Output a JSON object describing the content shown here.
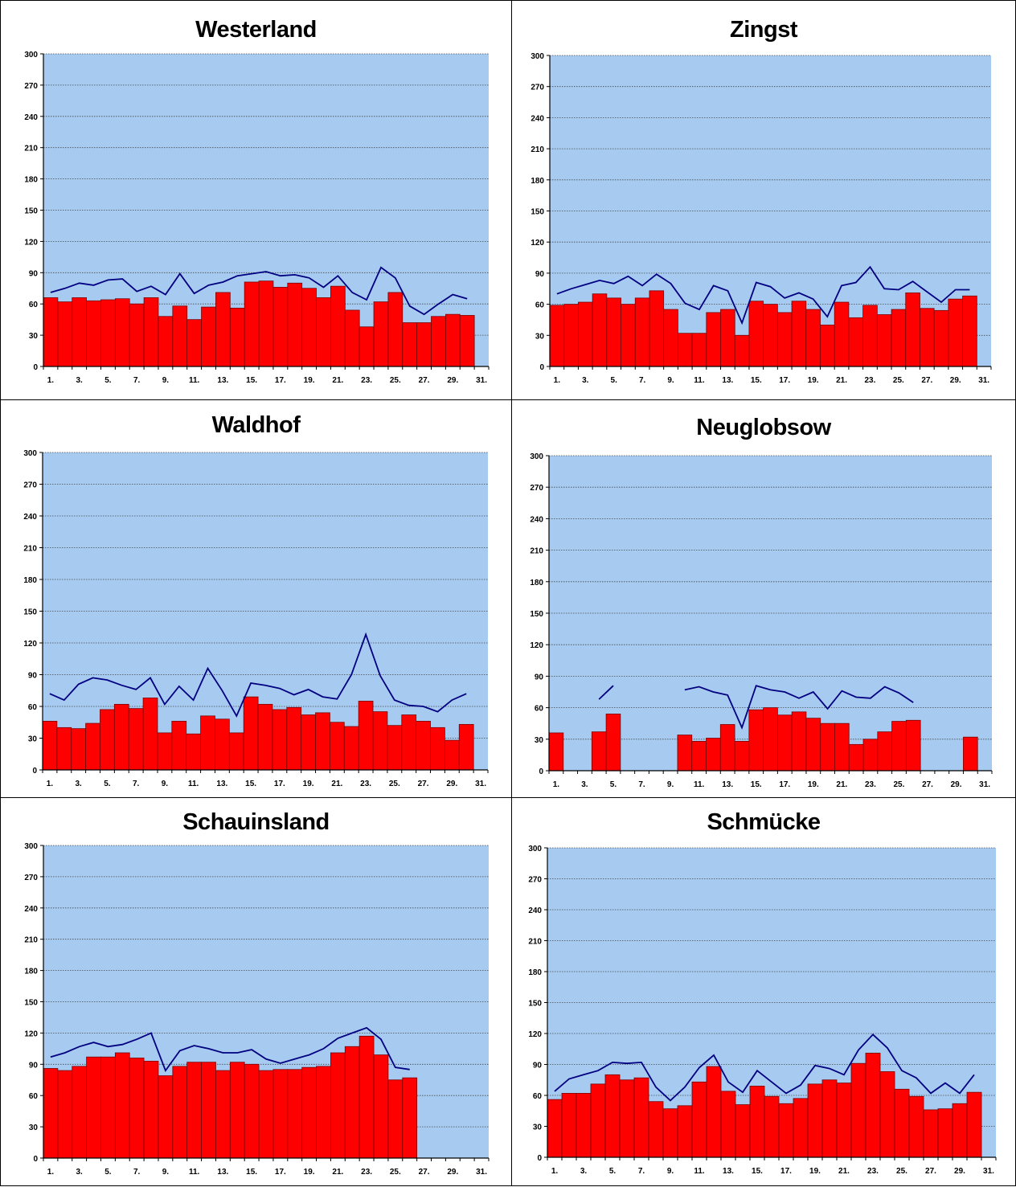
{
  "chart_data": [
    {
      "type": "bar",
      "title": "Westerland",
      "ylim": [
        0,
        300
      ],
      "yticks": [
        0,
        30,
        60,
        90,
        120,
        150,
        180,
        210,
        240,
        270,
        300
      ],
      "xtick_labels": [
        "1.",
        "3.",
        "5.",
        "7.",
        "9.",
        "11.",
        "13.",
        "15.",
        "17.",
        "19.",
        "21.",
        "23.",
        "25.",
        "27.",
        "29.",
        "31."
      ],
      "grid": true,
      "bars": [
        66,
        62,
        66,
        63,
        64,
        65,
        60,
        66,
        48,
        58,
        45,
        57,
        71,
        56,
        81,
        82,
        76,
        80,
        75,
        66,
        77,
        54,
        38,
        62,
        71,
        42,
        42,
        48,
        50,
        49,
        null
      ],
      "line": [
        71,
        75,
        80,
        78,
        83,
        84,
        72,
        77,
        69,
        89,
        70,
        78,
        81,
        87,
        89,
        91,
        87,
        88,
        85,
        76,
        87,
        71,
        64,
        95,
        85,
        58,
        50,
        60,
        69,
        65,
        null
      ]
    },
    {
      "type": "bar",
      "title": "Zingst",
      "ylim": [
        0,
        300
      ],
      "yticks": [
        0,
        30,
        60,
        90,
        120,
        150,
        180,
        210,
        240,
        270,
        300
      ],
      "xtick_labels": [
        "1.",
        "3.",
        "5.",
        "7.",
        "9.",
        "11.",
        "13.",
        "15.",
        "17.",
        "19.",
        "21.",
        "23.",
        "25.",
        "27.",
        "29.",
        "31."
      ],
      "grid": true,
      "bars": [
        59,
        60,
        62,
        70,
        66,
        60,
        66,
        73,
        55,
        32,
        32,
        52,
        55,
        30,
        63,
        60,
        52,
        63,
        55,
        40,
        62,
        47,
        59,
        50,
        55,
        71,
        56,
        54,
        65,
        68,
        null
      ],
      "line": [
        70,
        75,
        79,
        83,
        80,
        87,
        78,
        89,
        80,
        61,
        55,
        78,
        73,
        42,
        81,
        77,
        66,
        71,
        65,
        48,
        78,
        81,
        96,
        75,
        74,
        82,
        72,
        62,
        74,
        74,
        null
      ]
    },
    {
      "type": "bar",
      "title": "Waldhof",
      "ylim": [
        0,
        300
      ],
      "yticks": [
        0,
        30,
        60,
        90,
        120,
        150,
        180,
        210,
        240,
        270,
        300
      ],
      "xtick_labels": [
        "1.",
        "3.",
        "5.",
        "7.",
        "9.",
        "11.",
        "13.",
        "15.",
        "17.",
        "19.",
        "21.",
        "23.",
        "25.",
        "27.",
        "29.",
        "31."
      ],
      "grid": true,
      "bars": [
        46,
        40,
        39,
        44,
        57,
        62,
        58,
        68,
        35,
        46,
        34,
        51,
        48,
        35,
        69,
        62,
        57,
        59,
        52,
        54,
        45,
        41,
        65,
        55,
        42,
        52,
        46,
        40,
        28,
        43,
        null
      ],
      "line": [
        72,
        66,
        81,
        87,
        85,
        80,
        76,
        87,
        62,
        79,
        66,
        96,
        75,
        51,
        82,
        80,
        77,
        71,
        76,
        69,
        67,
        90,
        128,
        89,
        66,
        61,
        60,
        55,
        66,
        72,
        null
      ]
    },
    {
      "type": "bar",
      "title": "Neuglobsow",
      "ylim": [
        0,
        300
      ],
      "yticks": [
        0,
        30,
        60,
        90,
        120,
        150,
        180,
        210,
        240,
        270,
        300
      ],
      "xtick_labels": [
        "1.",
        "3.",
        "5.",
        "7.",
        "9.",
        "11.",
        "13.",
        "15.",
        "17.",
        "19.",
        "21.",
        "23.",
        "25.",
        "27.",
        "29.",
        "31."
      ],
      "grid": true,
      "bars": [
        36,
        null,
        null,
        37,
        54,
        null,
        null,
        null,
        null,
        34,
        28,
        31,
        44,
        28,
        58,
        60,
        53,
        56,
        50,
        45,
        45,
        25,
        30,
        37,
        47,
        48,
        null,
        null,
        null,
        32,
        null
      ],
      "line": [
        null,
        null,
        null,
        68,
        81,
        null,
        null,
        null,
        null,
        77,
        80,
        75,
        72,
        41,
        81,
        77,
        75,
        69,
        75,
        59,
        76,
        70,
        69,
        80,
        74,
        65,
        null,
        null,
        null,
        null,
        null
      ]
    },
    {
      "type": "bar",
      "title": "Schauinsland",
      "ylim": [
        0,
        300
      ],
      "yticks": [
        0,
        30,
        60,
        90,
        120,
        150,
        180,
        210,
        240,
        270,
        300
      ],
      "xtick_labels": [
        "1.",
        "3.",
        "5.",
        "7.",
        "9.",
        "11.",
        "13.",
        "15.",
        "17.",
        "19.",
        "21.",
        "23.",
        "25.",
        "27.",
        "29.",
        "31."
      ],
      "grid": true,
      "bars": [
        86,
        84,
        88,
        97,
        97,
        101,
        96,
        93,
        79,
        88,
        92,
        92,
        84,
        92,
        90,
        84,
        85,
        85,
        87,
        88,
        101,
        107,
        117,
        99,
        75,
        77,
        null,
        null,
        null,
        null,
        null
      ],
      "line": [
        97,
        101,
        107,
        111,
        107,
        109,
        114,
        120,
        84,
        103,
        108,
        105,
        101,
        101,
        104,
        95,
        91,
        95,
        99,
        105,
        115,
        120,
        125,
        114,
        87,
        85,
        null,
        null,
        null,
        null,
        null
      ]
    },
    {
      "type": "bar",
      "title": "Schmücke",
      "ylim": [
        0,
        300
      ],
      "yticks": [
        0,
        30,
        60,
        90,
        120,
        150,
        180,
        210,
        240,
        270,
        300
      ],
      "xtick_labels": [
        "1.",
        "3.",
        "5.",
        "7.",
        "9.",
        "11.",
        "13.",
        "15.",
        "17.",
        "19.",
        "21.",
        "23.",
        "25.",
        "27.",
        "29.",
        "31."
      ],
      "grid": true,
      "bars": [
        56,
        62,
        62,
        71,
        80,
        75,
        77,
        54,
        47,
        50,
        73,
        88,
        64,
        51,
        69,
        59,
        52,
        57,
        71,
        75,
        72,
        91,
        101,
        83,
        66,
        59,
        46,
        47,
        52,
        63,
        null
      ],
      "line": [
        64,
        76,
        80,
        84,
        92,
        91,
        92,
        68,
        55,
        68,
        87,
        99,
        73,
        63,
        84,
        73,
        62,
        70,
        89,
        86,
        80,
        104,
        119,
        106,
        84,
        77,
        62,
        72,
        62,
        80,
        null
      ]
    }
  ],
  "colors": {
    "plot_bg": "#a6caf0",
    "bar": "#ff0000",
    "bar_edge": "#7a0000",
    "line": "#000080",
    "grid": "#4a4a4a"
  }
}
